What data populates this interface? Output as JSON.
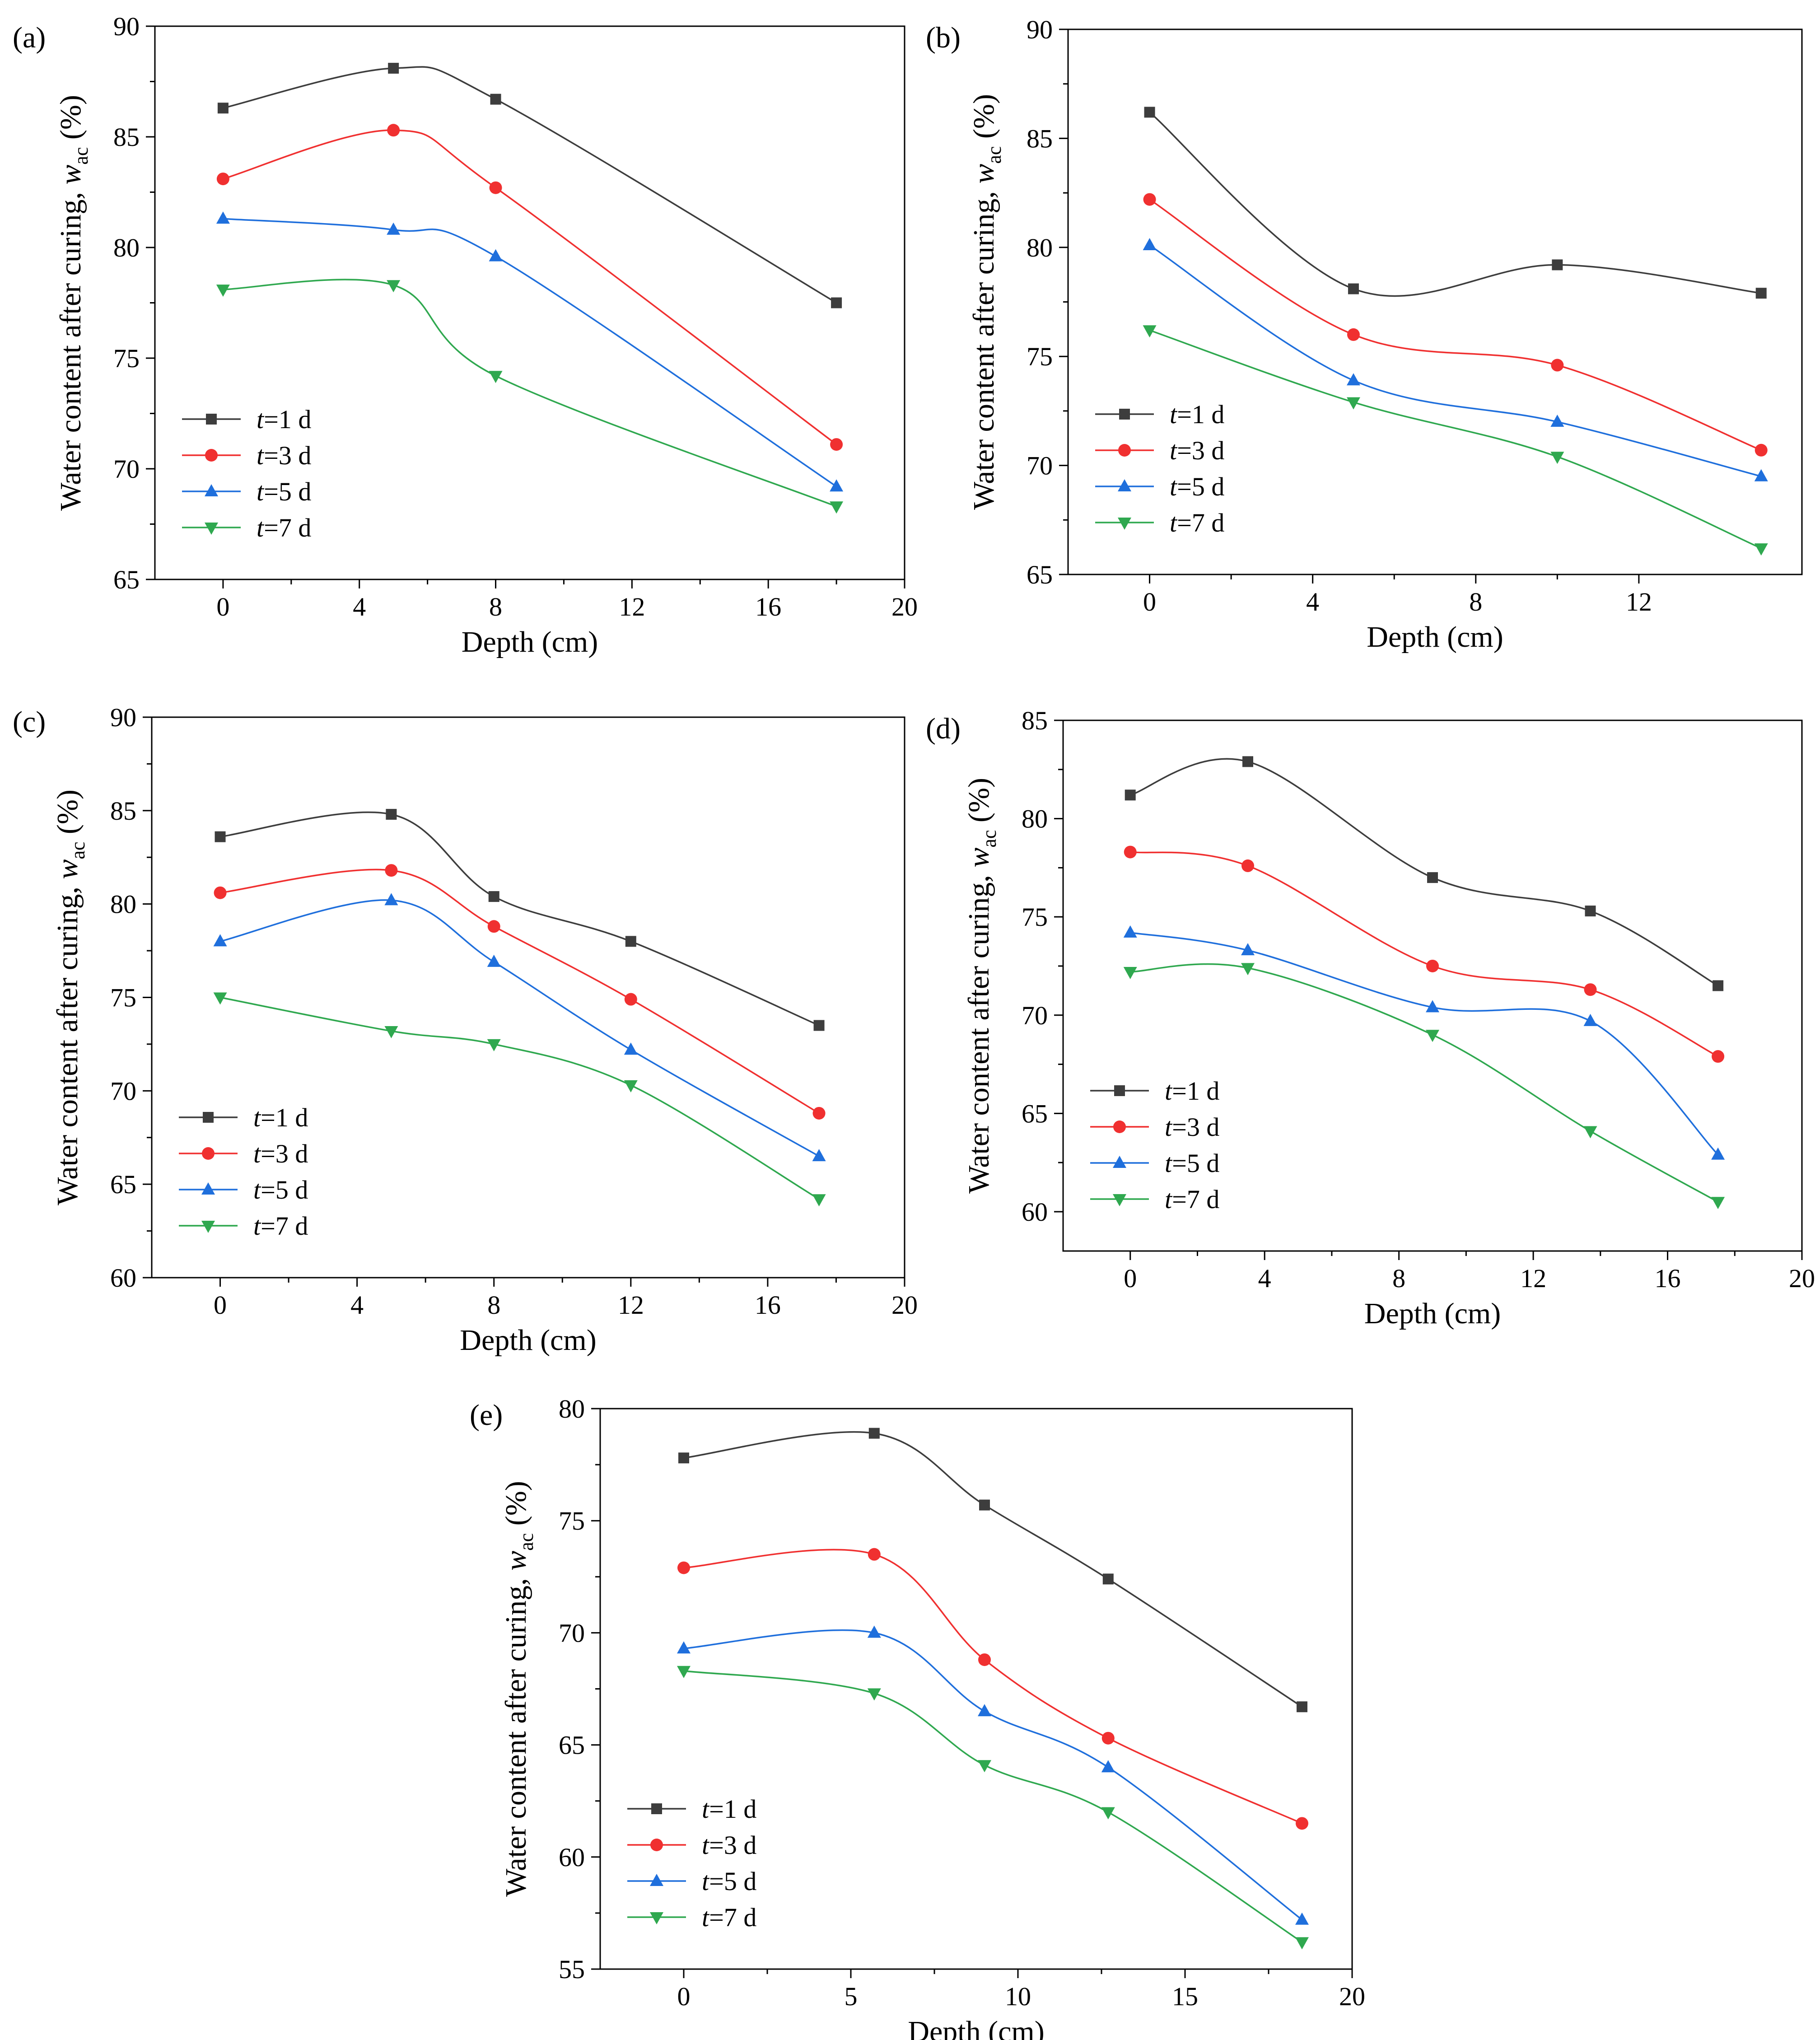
{
  "figure": {
    "ylabel_prefix": "Water content after curing, ",
    "ylabel_var": "w",
    "ylabel_sub": "ac",
    "ylabel_suffix": " (%)",
    "legend": [
      {
        "var": "t",
        "rest": "=1 d"
      },
      {
        "var": "t",
        "rest": "=3 d"
      },
      {
        "var": "t",
        "rest": "=5 d"
      },
      {
        "var": "t",
        "rest": "=7 d"
      }
    ],
    "colors": {
      "t1": "#3d3d3d",
      "t3": "#f03030",
      "t5": "#1f6fdc",
      "t7": "#2fa84f"
    },
    "markers": [
      "square",
      "circle",
      "triangle-up",
      "triangle-down"
    ]
  },
  "chart_data": [
    {
      "panel": "(a)",
      "type": "line",
      "xlabel": "Depth (cm)",
      "xlim": [
        -2,
        20
      ],
      "ylim": [
        65,
        90
      ],
      "xticks": [
        0,
        4,
        8,
        12,
        16,
        20
      ],
      "yticks": [
        65,
        70,
        75,
        80,
        85,
        90
      ],
      "legend_position": "bottom-left",
      "x": [
        0,
        5,
        8,
        18
      ],
      "series": [
        {
          "name": "t=1 d",
          "values": [
            86.3,
            88.1,
            86.7,
            77.5
          ]
        },
        {
          "name": "t=3 d",
          "values": [
            83.1,
            85.3,
            82.7,
            71.1
          ]
        },
        {
          "name": "t=5 d",
          "values": [
            81.3,
            80.8,
            79.6,
            69.2
          ]
        },
        {
          "name": "t=7 d",
          "values": [
            78.1,
            78.3,
            74.2,
            68.3
          ]
        }
      ]
    },
    {
      "panel": "(b)",
      "type": "line",
      "xlabel": "Depth (cm)",
      "xlim": [
        -2,
        16
      ],
      "ylim": [
        65,
        90
      ],
      "xticks": [
        0,
        4,
        8,
        12
      ],
      "yticks": [
        65,
        70,
        75,
        80,
        85,
        90
      ],
      "legend_position": "bottom-left",
      "x": [
        0,
        5,
        10,
        15
      ],
      "series": [
        {
          "name": "t=1 d",
          "values": [
            86.2,
            78.1,
            79.2,
            77.9
          ]
        },
        {
          "name": "t=3 d",
          "values": [
            82.2,
            76.0,
            74.6,
            70.7
          ]
        },
        {
          "name": "t=5 d",
          "values": [
            80.1,
            73.9,
            72.0,
            69.5
          ]
        },
        {
          "name": "t=7 d",
          "values": [
            76.2,
            72.9,
            70.4,
            66.2
          ]
        }
      ]
    },
    {
      "panel": "(c)",
      "type": "line",
      "xlabel": "Depth (cm)",
      "xlim": [
        -2,
        20
      ],
      "ylim": [
        60,
        90
      ],
      "xticks": [
        0,
        4,
        8,
        12,
        16,
        20
      ],
      "yticks": [
        60,
        65,
        70,
        75,
        80,
        85,
        90
      ],
      "legend_position": "bottom-left",
      "x": [
        0,
        5,
        8,
        12,
        17.5
      ],
      "series": [
        {
          "name": "t=1 d",
          "values": [
            83.6,
            84.8,
            80.4,
            78.0,
            73.5
          ]
        },
        {
          "name": "t=3 d",
          "values": [
            80.6,
            81.8,
            78.8,
            74.9,
            68.8
          ]
        },
        {
          "name": "t=5 d",
          "values": [
            78.0,
            80.2,
            76.9,
            72.2,
            66.5
          ]
        },
        {
          "name": "t=7 d",
          "values": [
            75.0,
            73.2,
            72.5,
            70.3,
            64.2
          ]
        }
      ]
    },
    {
      "panel": "(d)",
      "type": "line",
      "xlabel": "Depth (cm)",
      "xlim": [
        -2,
        20
      ],
      "ylim": [
        58,
        85
      ],
      "xticks": [
        0,
        4,
        8,
        12,
        16,
        20
      ],
      "yticks": [
        60,
        65,
        70,
        75,
        80,
        85
      ],
      "legend_position": "bottom-left",
      "x": [
        0,
        3.5,
        9,
        13.7,
        17.5
      ],
      "series": [
        {
          "name": "t=1 d",
          "values": [
            81.2,
            82.9,
            77.0,
            75.3,
            71.5
          ]
        },
        {
          "name": "t=3 d",
          "values": [
            78.3,
            77.6,
            72.5,
            71.3,
            67.9
          ]
        },
        {
          "name": "t=5 d",
          "values": [
            74.2,
            73.3,
            70.4,
            69.7,
            62.9
          ]
        },
        {
          "name": "t=7 d",
          "values": [
            72.2,
            72.4,
            69.0,
            64.1,
            60.5
          ]
        }
      ]
    },
    {
      "panel": "(e)",
      "type": "line",
      "xlabel": "Depth (cm)",
      "xlim": [
        -2.5,
        20
      ],
      "ylim": [
        55,
        80
      ],
      "xticks": [
        0,
        5,
        10,
        15,
        20
      ],
      "yticks": [
        55,
        60,
        65,
        70,
        75,
        80
      ],
      "legend_position": "bottom-left",
      "x": [
        0,
        5.7,
        9,
        12.7,
        18.5
      ],
      "series": [
        {
          "name": "t=1 d",
          "values": [
            77.8,
            78.9,
            75.7,
            72.4,
            66.7
          ]
        },
        {
          "name": "t=3 d",
          "values": [
            72.9,
            73.5,
            68.8,
            65.3,
            61.5
          ]
        },
        {
          "name": "t=5 d",
          "values": [
            69.3,
            70.0,
            66.5,
            64.0,
            57.2
          ]
        },
        {
          "name": "t=7 d",
          "values": [
            68.3,
            67.3,
            64.1,
            62.0,
            56.2
          ]
        }
      ]
    }
  ]
}
